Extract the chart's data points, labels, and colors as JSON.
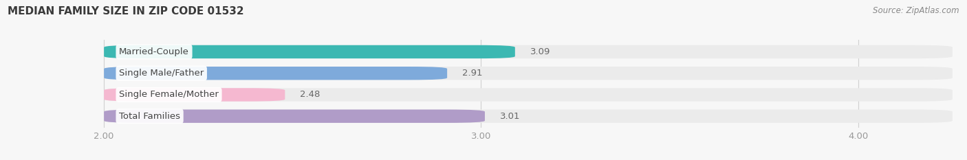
{
  "title": "MEDIAN FAMILY SIZE IN ZIP CODE 01532",
  "source": "Source: ZipAtlas.com",
  "categories": [
    "Married-Couple",
    "Single Male/Father",
    "Single Female/Mother",
    "Total Families"
  ],
  "values": [
    3.09,
    2.91,
    2.48,
    3.01
  ],
  "bar_colors": [
    "#3cb8b2",
    "#7eaadb",
    "#f5b8d0",
    "#b09cc8"
  ],
  "bar_bg_color": "#ebebeb",
  "xlim_min": 1.75,
  "xlim_max": 4.25,
  "xstart": 2.0,
  "xticks": [
    2.0,
    3.0,
    4.0
  ],
  "xtick_labels": [
    "2.00",
    "3.00",
    "4.00"
  ],
  "bar_height": 0.62,
  "label_fontsize": 9.5,
  "value_fontsize": 9.5,
  "title_fontsize": 11,
  "source_fontsize": 8.5,
  "background_color": "#f7f7f7",
  "label_bg_color": "#ffffff",
  "label_text_color": "#444444",
  "value_text_color": "#666666",
  "grid_color": "#d0d0d0",
  "tick_color": "#999999"
}
